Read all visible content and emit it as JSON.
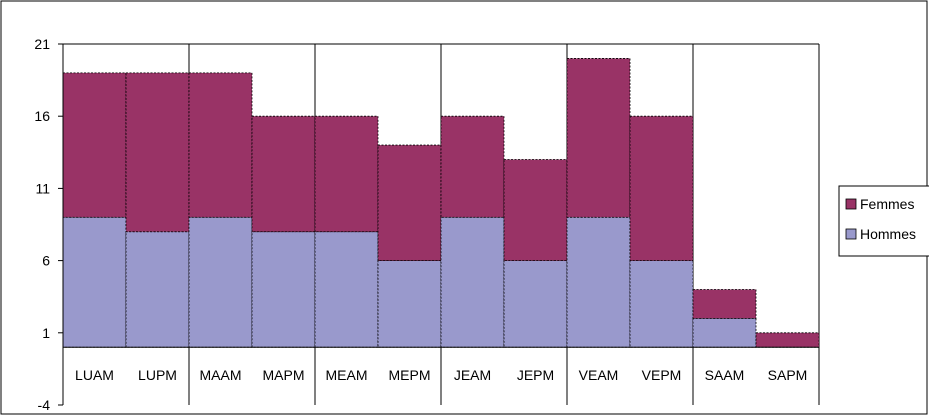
{
  "chart_data": {
    "type": "bar",
    "stacked": true,
    "categories": [
      "LUAM",
      "LUPM",
      "MAAM",
      "MAPM",
      "MEAM",
      "MEPM",
      "JEAM",
      "JEPM",
      "VEAM",
      "VEPM",
      "SAAM",
      "SAPM"
    ],
    "series": [
      {
        "name": "Hommes",
        "color": "#9999cc",
        "values": [
          9,
          8,
          9,
          8,
          8,
          6,
          9,
          6,
          9,
          6,
          2,
          0
        ]
      },
      {
        "name": "Femmes",
        "color": "#993366",
        "values": [
          10,
          11,
          10,
          8,
          8,
          8,
          7,
          7,
          11,
          10,
          2,
          1
        ]
      }
    ],
    "yticks": [
      "21",
      "16",
      "11",
      "6",
      "1",
      "-4"
    ],
    "ylim": [
      -4,
      21
    ],
    "baseline": 0,
    "grid": "vertical lines between day pairs",
    "legend_position": "right",
    "title": "",
    "xlabel": "",
    "ylabel": ""
  }
}
